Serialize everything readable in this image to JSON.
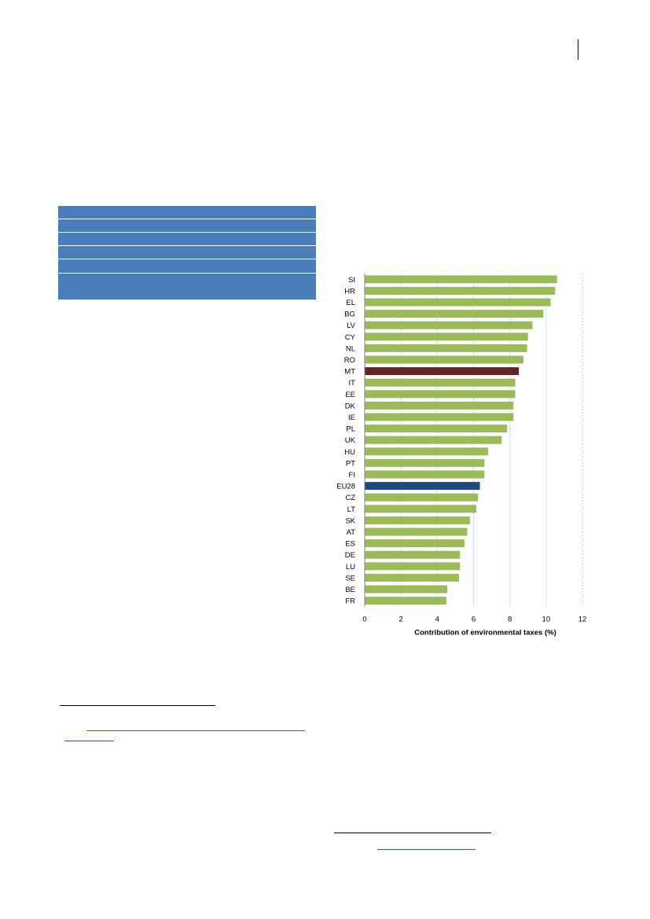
{
  "colors": {
    "bar_default": "#9bbb59",
    "bar_highlight_mt": "#632523",
    "bar_highlight_eu28": "#1f497d",
    "table_fill": "#4a7ebb",
    "gridline": "#b9cde5"
  },
  "chart_data": {
    "type": "bar",
    "orientation": "horizontal",
    "categories": [
      "SI",
      "HR",
      "EL",
      "BG",
      "LV",
      "CY",
      "NL",
      "RO",
      "MT",
      "IT",
      "EE",
      "DK",
      "IE",
      "PL",
      "UK",
      "HU",
      "PT",
      "FI",
      "EU28",
      "CZ",
      "LT",
      "SK",
      "AT",
      "ES",
      "DE",
      "LU",
      "SE",
      "BE",
      "FR"
    ],
    "values": [
      10.6,
      10.5,
      10.25,
      9.85,
      9.25,
      9.0,
      8.95,
      8.75,
      8.5,
      8.3,
      8.3,
      8.2,
      8.2,
      7.85,
      7.55,
      6.8,
      6.6,
      6.6,
      6.35,
      6.25,
      6.15,
      5.8,
      5.65,
      5.5,
      5.25,
      5.25,
      5.2,
      4.55,
      4.5
    ],
    "highlight": {
      "MT": "#632523",
      "EU28": "#1f497d"
    },
    "xlabel": "Contribution of environmental taxes (%)",
    "ylabel": "",
    "xlim": [
      0,
      12
    ],
    "xticks": [
      "0",
      "2",
      "4",
      "6",
      "8",
      "10",
      "12"
    ],
    "grid": true
  }
}
